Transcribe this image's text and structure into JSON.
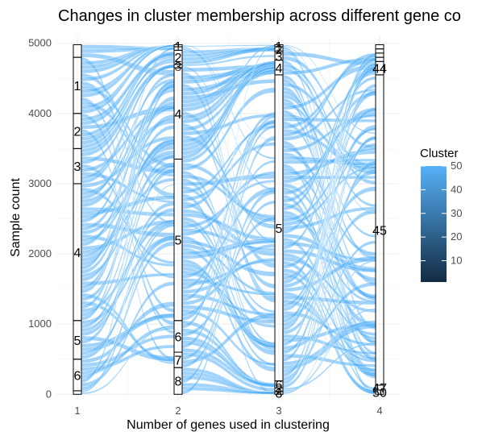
{
  "chart_data": {
    "type": "alluvial",
    "title": "Changes in cluster membership across different gene co",
    "xlabel": "Number of genes used in clustering",
    "ylabel": "Sample count",
    "x_ticks": [
      "1",
      "2",
      "3",
      "4"
    ],
    "y_ticks": [
      0,
      1000,
      2000,
      3000,
      4000,
      5000
    ],
    "ylim": [
      -100,
      5100
    ],
    "legend": {
      "title": "Cluster",
      "placement": "right",
      "ticks": [
        10,
        20,
        30,
        40,
        50
      ],
      "range": [
        1,
        50
      ],
      "color_low": "#132B43",
      "color_high": "#56B1F7"
    },
    "flow_color": "#56B1F7",
    "axes": [
      {
        "x": "1",
        "strata": [
          {
            "label": "",
            "from": 4800,
            "to": 4980
          },
          {
            "label": "1",
            "from": 4000,
            "to": 4800
          },
          {
            "label": "2",
            "from": 3500,
            "to": 4000
          },
          {
            "label": "3",
            "from": 3000,
            "to": 3500
          },
          {
            "label": "4",
            "from": 1050,
            "to": 3000
          },
          {
            "label": "5",
            "from": 500,
            "to": 1050
          },
          {
            "label": "6",
            "from": 50,
            "to": 500
          },
          {
            "label": "",
            "from": 0,
            "to": 50
          }
        ]
      },
      {
        "x": "2",
        "strata": [
          {
            "label": "1",
            "from": 4950,
            "to": 4980
          },
          {
            "label": "",
            "from": 4900,
            "to": 4950
          },
          {
            "label": "2",
            "from": 4700,
            "to": 4900
          },
          {
            "label": "3",
            "from": 4650,
            "to": 4700
          },
          {
            "label": "4",
            "from": 3350,
            "to": 4650
          },
          {
            "label": "5",
            "from": 1050,
            "to": 3350
          },
          {
            "label": "6",
            "from": 600,
            "to": 1050
          },
          {
            "label": "7",
            "from": 380,
            "to": 600
          },
          {
            "label": "8",
            "from": 0,
            "to": 380
          }
        ]
      },
      {
        "x": "3",
        "strata": [
          {
            "label": "1",
            "from": 4950,
            "to": 4980
          },
          {
            "label": "2",
            "from": 4880,
            "to": 4950
          },
          {
            "label": "3",
            "from": 4760,
            "to": 4880
          },
          {
            "label": "4",
            "from": 4550,
            "to": 4760
          },
          {
            "label": "5",
            "from": 190,
            "to": 4550
          },
          {
            "label": "6",
            "from": 90,
            "to": 190
          },
          {
            "label": "7",
            "from": 40,
            "to": 90
          },
          {
            "label": "8",
            "from": 0,
            "to": 40
          }
        ]
      },
      {
        "x": "4",
        "strata": [
          {
            "label": "",
            "from": 4920,
            "to": 4980
          },
          {
            "label": "",
            "from": 4860,
            "to": 4920
          },
          {
            "label": "",
            "from": 4800,
            "to": 4860
          },
          {
            "label": "",
            "from": 4740,
            "to": 4800
          },
          {
            "label": "44",
            "from": 4550,
            "to": 4740
          },
          {
            "label": "45",
            "from": 130,
            "to": 4550
          },
          {
            "label": "47",
            "from": 60,
            "to": 130
          },
          {
            "label": "50",
            "from": 0,
            "to": 60
          }
        ]
      }
    ]
  }
}
